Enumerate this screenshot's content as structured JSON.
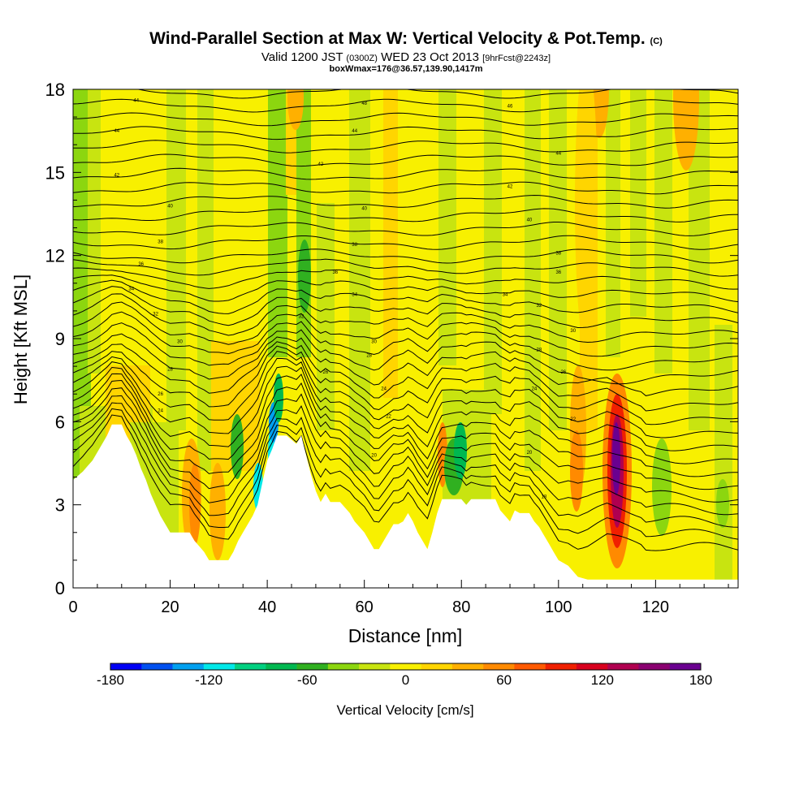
{
  "title": {
    "main": "Wind-Parallel Section at Max W: Vertical Velocity & Pot.Temp.",
    "main_mark": "(C)",
    "valid_a": "Valid 1200 JST",
    "valid_b": "(0300Z)",
    "valid_c": "WED 23 Oct 2013",
    "valid_d": "[9hrFcst@2243z]",
    "boxwmax": "boxWmax=176@36.57,139.90,1417m"
  },
  "chart_data": {
    "type": "heatmap",
    "xlabel": "Distance [nm]",
    "ylabel": "Height [Kft MSL]",
    "xlim": [
      0,
      137
    ],
    "ylim": [
      0,
      18
    ],
    "x_ticks": [
      "0",
      "20",
      "40",
      "60",
      "80",
      "100",
      "120"
    ],
    "x_tick_values": [
      0,
      20,
      40,
      60,
      80,
      100,
      120
    ],
    "y_ticks": [
      "0",
      "3",
      "6",
      "9",
      "12",
      "15",
      "18"
    ],
    "y_tick_values": [
      0,
      3,
      6,
      9,
      12,
      15,
      18
    ],
    "terrain": [
      [
        0,
        3.9
      ],
      [
        2,
        4.2
      ],
      [
        3,
        4.4
      ],
      [
        4,
        4.6
      ],
      [
        5,
        4.9
      ],
      [
        6,
        5.2
      ],
      [
        7,
        5.5
      ],
      [
        8,
        5.9
      ],
      [
        10,
        5.9
      ],
      [
        11,
        5.5
      ],
      [
        12,
        5.2
      ],
      [
        13,
        4.8
      ],
      [
        14,
        4.3
      ],
      [
        15,
        3.9
      ],
      [
        16,
        3.4
      ],
      [
        17,
        3.0
      ],
      [
        18,
        2.6
      ],
      [
        19,
        2.3
      ],
      [
        20,
        2.0
      ],
      [
        22,
        2.0
      ],
      [
        24,
        2.0
      ],
      [
        25,
        1.7
      ],
      [
        26,
        1.5
      ],
      [
        27,
        1.3
      ],
      [
        28,
        1.0
      ],
      [
        30,
        1.0
      ],
      [
        32,
        1.0
      ],
      [
        33,
        1.3
      ],
      [
        34,
        1.7
      ],
      [
        35,
        2.0
      ],
      [
        36,
        2.3
      ],
      [
        37,
        2.6
      ],
      [
        38,
        3.0
      ],
      [
        39,
        3.8
      ],
      [
        40,
        4.6
      ],
      [
        41,
        5.0
      ],
      [
        42,
        5.5
      ],
      [
        44,
        5.5
      ],
      [
        46,
        5.2
      ],
      [
        47,
        5.5
      ],
      [
        48,
        4.8
      ],
      [
        49,
        4.1
      ],
      [
        50,
        3.5
      ],
      [
        51,
        3.1
      ],
      [
        52,
        3.4
      ],
      [
        53,
        3.1
      ],
      [
        55,
        3.1
      ],
      [
        57,
        2.7
      ],
      [
        58,
        2.4
      ],
      [
        60,
        2.0
      ],
      [
        61,
        1.7
      ],
      [
        62,
        1.4
      ],
      [
        63,
        1.4
      ],
      [
        64,
        1.7
      ],
      [
        65,
        2.0
      ],
      [
        66,
        2.3
      ],
      [
        67,
        2.3
      ],
      [
        68,
        2.4
      ],
      [
        69,
        2.7
      ],
      [
        70,
        2.4
      ],
      [
        71,
        2.0
      ],
      [
        72,
        1.7
      ],
      [
        73,
        1.4
      ],
      [
        74,
        2.0
      ],
      [
        75,
        2.7
      ],
      [
        76,
        3.2
      ],
      [
        80,
        3.2
      ],
      [
        81,
        3.0
      ],
      [
        82,
        3.2
      ],
      [
        87,
        3.2
      ],
      [
        88,
        2.8
      ],
      [
        89,
        2.6
      ],
      [
        90,
        2.4
      ],
      [
        91,
        2.8
      ],
      [
        92,
        2.7
      ],
      [
        94,
        2.7
      ],
      [
        95,
        2.4
      ],
      [
        96,
        2.2
      ],
      [
        97,
        1.9
      ],
      [
        98,
        1.6
      ],
      [
        99,
        1.3
      ],
      [
        100,
        1.0
      ],
      [
        101,
        0.9
      ],
      [
        102,
        0.8
      ],
      [
        103,
        0.6
      ],
      [
        104,
        0.4
      ],
      [
        106,
        0.3
      ],
      [
        137,
        0.3
      ]
    ],
    "colorbar": {
      "label": "Vertical Velocity [cm/s]",
      "ticks": [
        "-180",
        "-120",
        "-60",
        "0",
        "60",
        "120",
        "180"
      ],
      "tick_values": [
        -180,
        -120,
        -60,
        0,
        60,
        120,
        180
      ],
      "colors": [
        "#0000f5",
        "#0050f0",
        "#00a0f0",
        "#00e8e8",
        "#00d080",
        "#00b850",
        "#30b020",
        "#8cd60f",
        "#c8e410",
        "#f8f000",
        "#ffd500",
        "#ffb000",
        "#ff8a00",
        "#ff5a00",
        "#f02000",
        "#d8001e",
        "#b00050",
        "#8a0070",
        "#6a0090"
      ]
    },
    "isentropes": [
      "94",
      "96",
      "98",
      "100",
      "102",
      "104",
      "106",
      "108",
      "110",
      "112",
      "114",
      "116",
      "118",
      "120",
      "122",
      "124",
      "126",
      "128",
      "130",
      "132",
      "134",
      "136",
      "138",
      "140",
      "142",
      "144",
      "146",
      "148",
      "150",
      "152",
      "154",
      "156",
      "158",
      "160",
      "162",
      "164"
    ],
    "contour_labels": [
      {
        "text": "44",
        "x": 13,
        "y": 17.6
      },
      {
        "text": "44",
        "x": 9,
        "y": 16.5
      },
      {
        "text": "42",
        "x": 9,
        "y": 14.9
      },
      {
        "text": "40",
        "x": 20,
        "y": 13.8
      },
      {
        "text": "38",
        "x": 18,
        "y": 12.5
      },
      {
        "text": "36",
        "x": 14,
        "y": 11.7
      },
      {
        "text": "34",
        "x": 12,
        "y": 10.8
      },
      {
        "text": "32",
        "x": 17,
        "y": 9.9
      },
      {
        "text": "30",
        "x": 22,
        "y": 8.9
      },
      {
        "text": "28",
        "x": 20,
        "y": 7.9
      },
      {
        "text": "26",
        "x": 18,
        "y": 7.0
      },
      {
        "text": "24",
        "x": 18,
        "y": 6.4
      },
      {
        "text": "48",
        "x": 60,
        "y": 17.5
      },
      {
        "text": "44",
        "x": 58,
        "y": 16.5
      },
      {
        "text": "42",
        "x": 51,
        "y": 15.3
      },
      {
        "text": "40",
        "x": 60,
        "y": 13.7
      },
      {
        "text": "38",
        "x": 58,
        "y": 12.4
      },
      {
        "text": "36",
        "x": 54,
        "y": 11.4
      },
      {
        "text": "34",
        "x": 58,
        "y": 10.6
      },
      {
        "text": "32",
        "x": 47,
        "y": 9.8
      },
      {
        "text": "30",
        "x": 62,
        "y": 8.9
      },
      {
        "text": "28",
        "x": 61,
        "y": 8.4
      },
      {
        "text": "26",
        "x": 52,
        "y": 7.8
      },
      {
        "text": "24",
        "x": 64,
        "y": 7.2
      },
      {
        "text": "22",
        "x": 65,
        "y": 6.2
      },
      {
        "text": "20",
        "x": 62,
        "y": 4.8
      },
      {
        "text": "46",
        "x": 90,
        "y": 17.4
      },
      {
        "text": "44",
        "x": 100,
        "y": 15.7
      },
      {
        "text": "42",
        "x": 90,
        "y": 14.5
      },
      {
        "text": "40",
        "x": 94,
        "y": 13.3
      },
      {
        "text": "38",
        "x": 100,
        "y": 12.1
      },
      {
        "text": "36",
        "x": 100,
        "y": 11.4
      },
      {
        "text": "34",
        "x": 89,
        "y": 10.6
      },
      {
        "text": "32",
        "x": 96,
        "y": 10.2
      },
      {
        "text": "30",
        "x": 103,
        "y": 9.3
      },
      {
        "text": "28",
        "x": 96,
        "y": 8.6
      },
      {
        "text": "26",
        "x": 101,
        "y": 7.8
      },
      {
        "text": "24",
        "x": 95,
        "y": 7.2
      },
      {
        "text": "22",
        "x": 103,
        "y": 6.1
      },
      {
        "text": "20",
        "x": 94,
        "y": 4.9
      },
      {
        "text": "18",
        "x": 97,
        "y": 3.3
      }
    ]
  }
}
